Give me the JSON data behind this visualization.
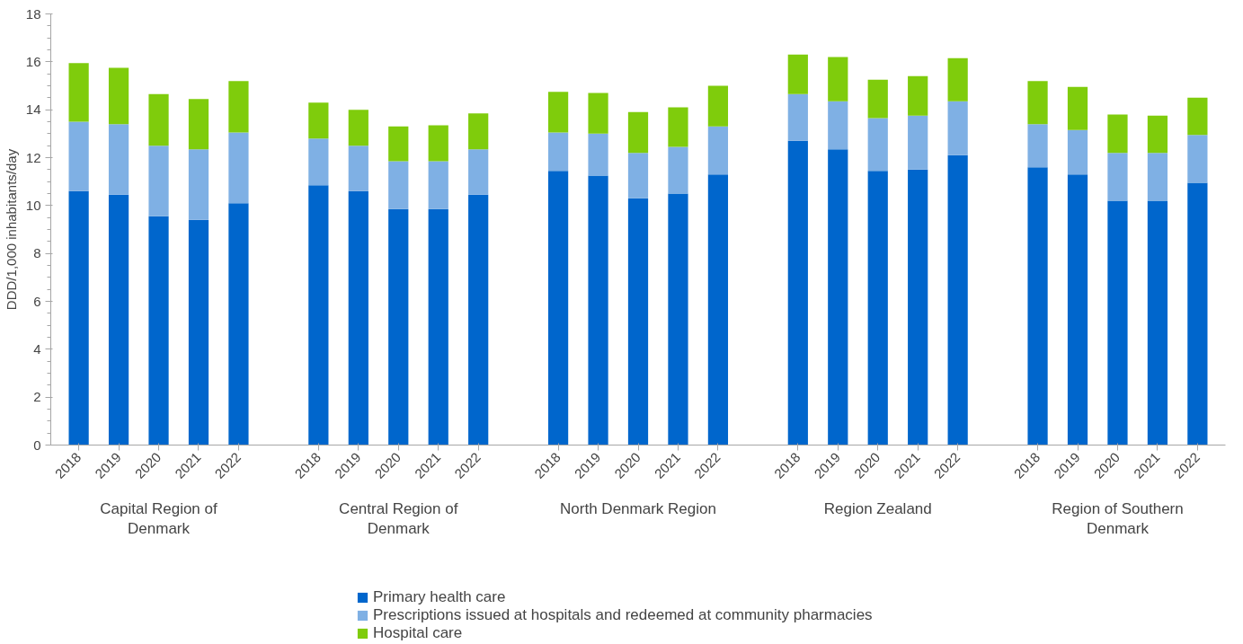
{
  "chart_data": {
    "type": "bar",
    "stacked": true,
    "ylabel": "DDD/1,000 inhabitants/day",
    "categories": [
      "2018",
      "2019",
      "2020",
      "2021",
      "2022",
      null,
      "2018",
      "2019",
      "2020",
      "2021",
      "2022",
      null,
      "2018",
      "2019",
      "2020",
      "2021",
      "2022",
      null,
      "2018",
      "2019",
      "2020",
      "2021",
      "2022",
      null,
      "2018",
      "2019",
      "2020",
      "2021",
      "2022"
    ],
    "series": [
      {
        "name": "Primary health care",
        "color": "#0066cc",
        "values": [
          10.6,
          10.45,
          9.55,
          9.4,
          10.1,
          null,
          10.85,
          10.6,
          9.85,
          9.85,
          10.45,
          null,
          11.45,
          11.25,
          10.3,
          10.5,
          11.3,
          null,
          12.7,
          12.35,
          11.45,
          11.5,
          12.1,
          null,
          11.6,
          11.3,
          10.2,
          10.2,
          10.95
        ]
      },
      {
        "name": "Prescriptions issued at hospitals and redeemed at community pharmacies",
        "color": "#7fb0e4",
        "values": [
          2.9,
          2.95,
          2.95,
          2.95,
          2.95,
          null,
          1.95,
          1.9,
          2.0,
          2.0,
          1.9,
          null,
          1.6,
          1.75,
          1.9,
          1.95,
          2.0,
          null,
          1.95,
          2.0,
          2.2,
          2.25,
          2.25,
          null,
          1.8,
          1.85,
          2.0,
          2.0,
          2.0
        ]
      },
      {
        "name": "Hospital care",
        "color": "#7fcc0c",
        "values": [
          2.45,
          2.35,
          2.15,
          2.1,
          2.15,
          null,
          1.5,
          1.5,
          1.45,
          1.5,
          1.5,
          null,
          1.7,
          1.7,
          1.7,
          1.65,
          1.7,
          null,
          1.65,
          1.85,
          1.6,
          1.65,
          1.8,
          null,
          1.8,
          1.8,
          1.6,
          1.55,
          1.55
        ]
      }
    ],
    "annotations": [
      "Capital Region of Denmark",
      "Central Region of Denmark",
      "North Denmark Region",
      "Region Zealand",
      "Region of Southern Denmark"
    ],
    "ylim": [
      0,
      18
    ],
    "yticks": [
      0,
      2,
      4,
      6,
      8,
      10,
      12,
      14,
      16,
      18
    ],
    "grid": false,
    "legend": "bottom"
  }
}
